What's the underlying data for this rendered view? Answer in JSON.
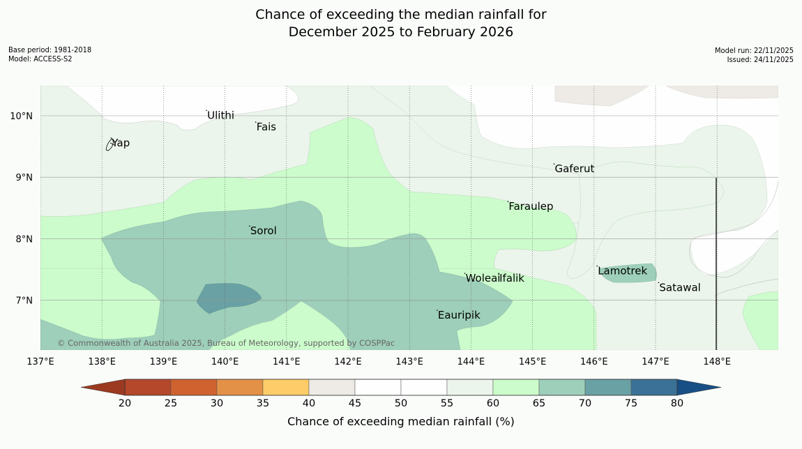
{
  "title": {
    "line1": "Chance of exceeding the median rainfall for",
    "line2": "December 2025 to February 2026"
  },
  "meta": {
    "base_period": "Base period: 1981-2018",
    "model": "Model: ACCESS-S2",
    "model_run": "Model run: 22/11/2025",
    "issued": "Issued: 24/11/2025"
  },
  "map": {
    "lon_range": [
      137,
      149
    ],
    "lat_range": [
      6.2,
      10.5
    ],
    "lon_ticks": [
      "137°E",
      "138°E",
      "139°E",
      "140°E",
      "141°E",
      "142°E",
      "143°E",
      "144°E",
      "145°E",
      "146°E",
      "147°E",
      "148°E"
    ],
    "lat_ticks": [
      "10°N",
      "9°N",
      "8°N",
      "7°N"
    ],
    "copyright": "© Commonwealth of Australia 2025, Bureau of Meteorology, supported by COSPPac",
    "places": [
      {
        "name": "Ulithi",
        "lon": 139.7,
        "lat": 9.95
      },
      {
        "name": "Fais",
        "lon": 140.5,
        "lat": 9.76
      },
      {
        "name": "Yap",
        "lon": 138.15,
        "lat": 9.5
      },
      {
        "name": "Gaferut",
        "lon": 145.35,
        "lat": 9.08
      },
      {
        "name": "Faraulep",
        "lon": 144.6,
        "lat": 8.47
      },
      {
        "name": "Sorol",
        "lon": 140.4,
        "lat": 8.07
      },
      {
        "name": "Woleai",
        "lon": 143.9,
        "lat": 7.3
      },
      {
        "name": "Ifalik",
        "lon": 144.45,
        "lat": 7.3
      },
      {
        "name": "Lamotrek",
        "lon": 146.05,
        "lat": 7.42
      },
      {
        "name": "Satawal",
        "lon": 147.05,
        "lat": 7.15
      },
      {
        "name": "Eauripik",
        "lon": 143.45,
        "lat": 6.7
      }
    ]
  },
  "colors": {
    "c20_25": "#b5472a",
    "c25_30": "#d0622f",
    "c30_35": "#e29147",
    "c35_40": "#fecc68",
    "c40_45": "#eeebe6",
    "c45_50": "#fdfefd",
    "c50_55": "#fdfefd",
    "c55_60": "#ebf5eb",
    "c60_65": "#ccfccc",
    "c65_70": "#9ecfba",
    "c70_75": "#6aa1a4",
    "c75_80": "#3b7196",
    "under": "#9b3a20",
    "over": "#184f85"
  },
  "colorbar": {
    "ticks": [
      "20",
      "25",
      "30",
      "35",
      "40",
      "45",
      "50",
      "55",
      "60",
      "65",
      "70",
      "75",
      "80"
    ],
    "label": "Chance of exceeding median rainfall (%)"
  }
}
